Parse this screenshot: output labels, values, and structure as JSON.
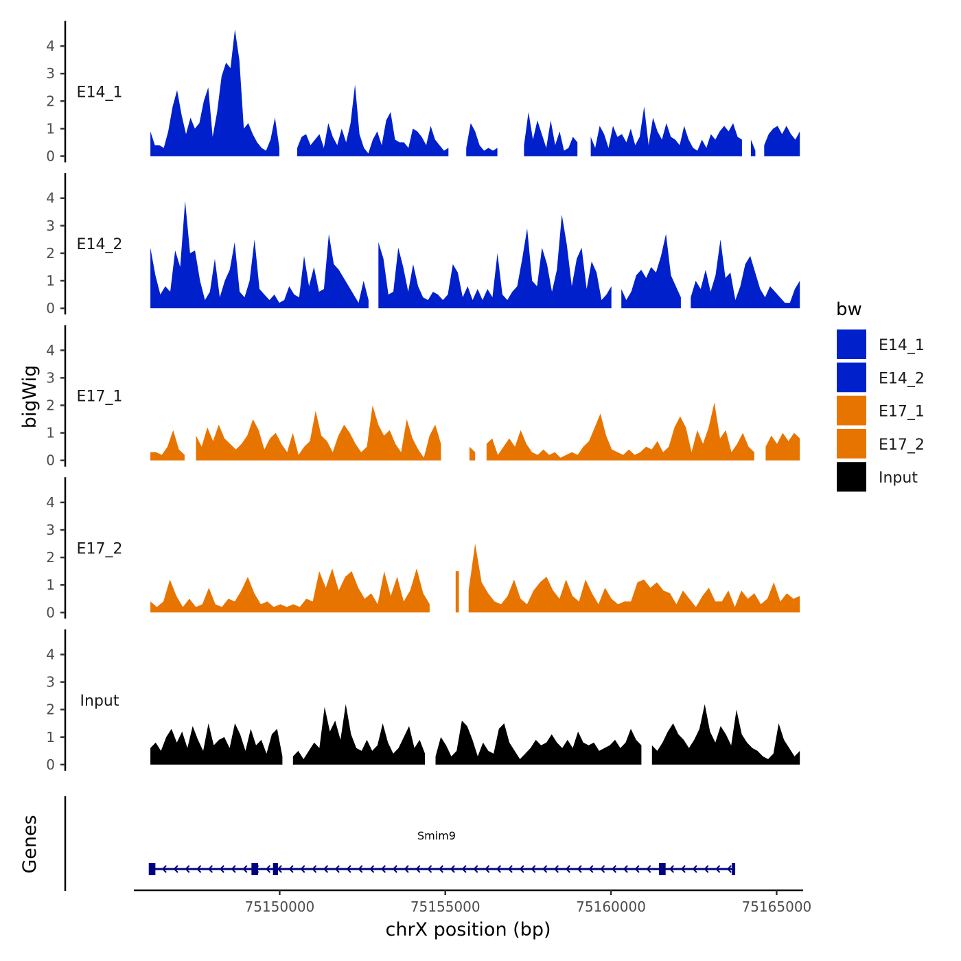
{
  "chart_data": {
    "type": "area",
    "chromosome": "chrX",
    "xlabel": "chrX position (bp)",
    "ylabel": "bigWig",
    "genes_label": "Genes",
    "xlim": [
      75145600,
      75165800
    ],
    "data_range": [
      75146100,
      75165700
    ],
    "x_ticks": [
      {
        "value": 75150000,
        "label": "75150000"
      },
      {
        "value": 75155000,
        "label": "75155000"
      },
      {
        "value": 75160000,
        "label": "75160000"
      },
      {
        "value": 75165000,
        "label": "75165000"
      }
    ],
    "ylim": [
      0,
      4.8
    ],
    "y_ticks": [
      {
        "value": 0,
        "label": "0"
      },
      {
        "value": 1,
        "label": "1"
      },
      {
        "value": 2,
        "label": "2"
      },
      {
        "value": 3,
        "label": "3"
      },
      {
        "value": 4,
        "label": "4"
      }
    ],
    "legend": {
      "title": "bw",
      "position": "right",
      "entries": [
        {
          "name": "E14_1",
          "color": "#0020CC"
        },
        {
          "name": "E14_2",
          "color": "#0020CC"
        },
        {
          "name": "E17_1",
          "color": "#E87400"
        },
        {
          "name": "E17_2",
          "color": "#E87400"
        },
        {
          "name": "Input",
          "color": "#000000"
        }
      ]
    },
    "series": [
      {
        "name": "E14_1",
        "color": "#0020CC",
        "values": [
          0.9,
          0.4,
          0.4,
          0.3,
          0.9,
          1.8,
          2.4,
          1.5,
          0.8,
          1.4,
          1.0,
          1.2,
          2.0,
          2.5,
          0.7,
          1.6,
          2.9,
          3.4,
          3.2,
          4.6,
          3.5,
          1.0,
          1.2,
          0.8,
          0.5,
          0.3,
          0.2,
          0.6,
          1.4,
          0.3,
          null,
          null,
          null,
          0.3,
          0.7,
          0.8,
          0.4,
          0.6,
          0.8,
          0.3,
          1.2,
          0.7,
          0.4,
          1.0,
          0.5,
          1.2,
          2.6,
          0.8,
          0.3,
          0.1,
          0.6,
          0.9,
          0.4,
          1.3,
          1.6,
          0.6,
          0.5,
          0.5,
          0.3,
          1.0,
          0.9,
          0.7,
          0.4,
          1.1,
          0.6,
          0.4,
          0.2,
          0.3,
          null,
          null,
          null,
          0.3,
          1.2,
          0.9,
          0.4,
          0.2,
          0.3,
          0.2,
          0.3,
          null,
          null,
          null,
          null,
          null,
          0.4,
          1.6,
          0.6,
          1.3,
          0.8,
          0.3,
          1.3,
          0.4,
          0.9,
          0.2,
          0.3,
          0.7,
          0.5,
          null,
          null,
          0.7,
          0.3,
          1.1,
          0.8,
          0.3,
          1.1,
          0.7,
          0.8,
          0.5,
          1.0,
          0.4,
          0.7,
          1.8,
          0.4,
          1.4,
          0.9,
          0.6,
          1.2,
          0.7,
          0.6,
          0.4,
          1.1,
          0.6,
          0.3,
          0.2,
          0.6,
          0.3,
          0.8,
          0.6,
          0.9,
          1.1,
          0.9,
          1.2,
          0.7,
          0.6,
          null,
          0.6,
          0.2,
          null,
          0.4,
          0.8,
          1.0,
          1.1,
          0.8,
          1.1,
          0.8,
          0.6,
          0.9
        ]
      },
      {
        "name": "E14_2",
        "color": "#0020CC",
        "values": [
          2.2,
          1.2,
          0.5,
          0.8,
          0.6,
          2.1,
          1.5,
          3.9,
          2.0,
          2.1,
          1.0,
          0.3,
          0.6,
          1.8,
          0.4,
          1.0,
          1.4,
          2.4,
          0.6,
          0.4,
          1.0,
          2.5,
          0.7,
          0.5,
          0.3,
          0.5,
          0.2,
          0.3,
          0.8,
          0.5,
          0.4,
          1.9,
          0.8,
          1.5,
          0.6,
          0.7,
          2.7,
          1.6,
          1.4,
          1.1,
          0.8,
          0.5,
          0.2,
          1.0,
          0.3,
          null,
          2.4,
          1.8,
          0.5,
          0.6,
          2.2,
          1.5,
          0.6,
          1.6,
          0.8,
          0.4,
          0.3,
          0.6,
          0.5,
          0.3,
          0.5,
          1.6,
          1.3,
          0.4,
          0.8,
          0.3,
          0.7,
          0.3,
          0.7,
          0.4,
          2.0,
          0.5,
          0.3,
          0.6,
          0.8,
          1.8,
          2.9,
          1.0,
          0.8,
          2.2,
          1.6,
          0.6,
          1.4,
          3.4,
          2.3,
          0.8,
          1.8,
          2.2,
          0.7,
          1.7,
          1.3,
          0.3,
          0.5,
          0.8,
          null,
          0.7,
          0.3,
          0.6,
          1.2,
          1.4,
          1.1,
          1.5,
          1.3,
          1.9,
          2.7,
          1.2,
          0.8,
          0.4,
          null,
          0.4,
          1.0,
          0.7,
          1.4,
          0.6,
          1.2,
          2.5,
          1.1,
          1.3,
          0.3,
          0.8,
          1.6,
          1.9,
          1.3,
          0.7,
          0.4,
          0.8,
          0.6,
          0.4,
          0.2,
          0.2,
          0.7,
          1.0
        ]
      },
      {
        "name": "E17_1",
        "color": "#E87400",
        "values": [
          0.3,
          0.3,
          0.2,
          0.5,
          1.1,
          0.4,
          0.2,
          null,
          0.9,
          0.5,
          1.2,
          0.7,
          1.3,
          0.8,
          0.6,
          0.4,
          0.6,
          0.9,
          1.5,
          1.1,
          0.4,
          0.8,
          1.0,
          0.6,
          0.3,
          1.0,
          0.2,
          0.5,
          0.7,
          1.8,
          0.9,
          0.7,
          0.3,
          0.9,
          1.3,
          1.0,
          0.6,
          0.3,
          0.5,
          2.0,
          1.3,
          0.9,
          1.1,
          0.6,
          0.3,
          1.5,
          0.8,
          0.4,
          0.1,
          0.9,
          1.3,
          0.6,
          null,
          null,
          null,
          null,
          0.5,
          0.3,
          null,
          0.6,
          0.8,
          0.2,
          0.5,
          0.8,
          0.5,
          1.1,
          0.6,
          0.3,
          0.2,
          0.4,
          0.2,
          0.3,
          0.1,
          0.2,
          0.3,
          0.2,
          0.5,
          0.7,
          1.2,
          1.7,
          0.9,
          0.4,
          0.3,
          0.2,
          0.4,
          0.2,
          0.3,
          0.5,
          0.4,
          0.7,
          0.3,
          0.5,
          1.2,
          1.6,
          1.2,
          0.3,
          1.1,
          0.6,
          1.2,
          2.1,
          0.8,
          1.1,
          0.3,
          0.6,
          1.0,
          0.5,
          0.3,
          null,
          0.5,
          0.9,
          0.6,
          1.0,
          0.7,
          1.0,
          0.8
        ]
      },
      {
        "name": "E17_2",
        "color": "#E87400",
        "values": [
          0.4,
          0.2,
          0.4,
          1.2,
          0.6,
          0.2,
          0.5,
          0.2,
          0.3,
          0.9,
          0.3,
          0.2,
          0.5,
          0.4,
          0.8,
          1.3,
          0.7,
          0.3,
          0.4,
          0.2,
          0.3,
          0.2,
          0.3,
          0.2,
          0.5,
          0.4,
          1.5,
          0.9,
          1.6,
          0.8,
          1.3,
          1.5,
          0.9,
          0.5,
          0.7,
          0.3,
          1.5,
          0.6,
          1.3,
          0.4,
          0.8,
          1.6,
          0.7,
          0.3,
          null,
          null,
          null,
          1.5,
          null,
          0.8,
          2.5,
          1.1,
          0.7,
          0.4,
          0.3,
          0.6,
          1.2,
          0.5,
          0.3,
          0.8,
          1.1,
          1.3,
          0.8,
          0.5,
          1.2,
          0.6,
          0.4,
          1.2,
          0.7,
          0.3,
          0.9,
          0.5,
          0.3,
          0.4,
          0.4,
          1.1,
          1.2,
          0.9,
          1.1,
          0.8,
          0.7,
          0.3,
          0.8,
          0.5,
          0.2,
          0.6,
          0.9,
          0.4,
          0.4,
          0.8,
          0.2,
          0.8,
          0.5,
          0.7,
          0.3,
          0.5,
          1.1,
          0.4,
          0.7,
          0.5,
          0.6
        ]
      },
      {
        "name": "Input",
        "color": "#000000",
        "values": [
          0.6,
          0.8,
          0.5,
          1.0,
          1.3,
          0.8,
          1.2,
          0.6,
          1.4,
          0.9,
          0.5,
          1.5,
          0.7,
          0.9,
          1.0,
          0.6,
          1.5,
          1.1,
          0.5,
          1.3,
          0.7,
          0.9,
          0.4,
          1.1,
          1.3,
          0.3,
          null,
          0.3,
          0.5,
          0.2,
          0.5,
          0.8,
          0.6,
          2.1,
          1.2,
          1.6,
          0.9,
          2.2,
          1.1,
          0.6,
          0.5,
          0.9,
          0.5,
          0.7,
          1.5,
          0.8,
          0.4,
          0.6,
          1.0,
          1.4,
          0.6,
          0.9,
          0.4,
          null,
          0.3,
          1.0,
          0.7,
          0.3,
          0.5,
          1.6,
          1.4,
          0.9,
          0.3,
          0.8,
          0.5,
          0.4,
          1.3,
          1.5,
          0.8,
          0.5,
          0.2,
          0.4,
          0.6,
          0.9,
          0.7,
          0.8,
          1.1,
          0.8,
          0.6,
          0.9,
          0.6,
          1.2,
          0.8,
          0.7,
          0.8,
          0.5,
          0.6,
          0.7,
          0.9,
          0.6,
          0.8,
          1.3,
          0.9,
          0.7,
          null,
          0.7,
          0.5,
          0.8,
          1.2,
          1.5,
          1.1,
          0.9,
          0.6,
          0.9,
          1.3,
          2.2,
          1.2,
          0.8,
          1.4,
          1.1,
          0.7,
          2.0,
          1.1,
          0.8,
          0.6,
          0.5,
          0.3,
          0.2,
          0.4,
          1.5,
          0.9,
          0.6,
          0.3,
          0.5
        ]
      }
    ],
    "gene": {
      "name": "Smim9",
      "strand": "-",
      "start": 75146100,
      "end": 75163750,
      "exons": [
        [
          75146050,
          75146250
        ],
        [
          75149150,
          75149350
        ],
        [
          75149800,
          75149950
        ],
        [
          75161450,
          75161650
        ],
        [
          75163650,
          75163750
        ]
      ]
    }
  }
}
